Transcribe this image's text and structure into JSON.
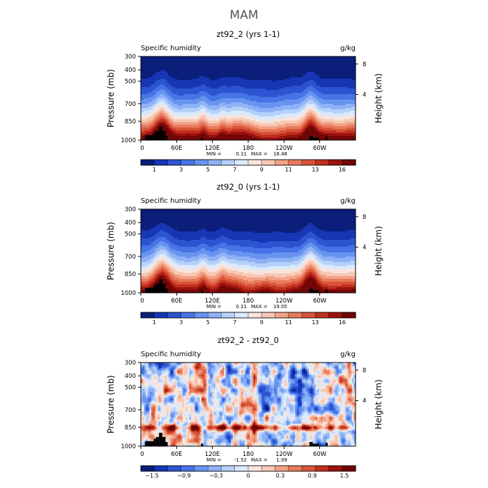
{
  "figure_title": "MAM",
  "chart_data": [
    {
      "type": "heatmap",
      "title": "zt92_2 (yrs 1-1)",
      "variable": "Specific humidity",
      "units": "g/kg",
      "ylabel": "Pressure (mb)",
      "ylabel_right": "Height (km)",
      "y_ticks": [
        "300",
        "400",
        "500",
        "700",
        "850",
        "1000"
      ],
      "y_ticks_right": [
        "8",
        "4"
      ],
      "x_ticks": [
        "0",
        "60E",
        "120E",
        "180",
        "120W",
        "60W"
      ],
      "min_label": "MIN =",
      "min_value": "0.11",
      "max_label": "MAX =",
      "max_value": "18.48",
      "colorbar_labels": [
        "1",
        "3",
        "5",
        "7",
        "9",
        "11",
        "13",
        "16"
      ],
      "colormap": "blue-white-red",
      "field": "humidity"
    },
    {
      "type": "heatmap",
      "title": "zt92_0 (yrs 1-1)",
      "variable": "Specific humidity",
      "units": "g/kg",
      "ylabel": "Pressure (mb)",
      "ylabel_right": "Height (km)",
      "y_ticks": [
        "300",
        "400",
        "500",
        "700",
        "850",
        "1000"
      ],
      "y_ticks_right": [
        "8",
        "4"
      ],
      "x_ticks": [
        "0",
        "60E",
        "120E",
        "180",
        "120W",
        "60W"
      ],
      "min_label": "MIN =",
      "min_value": "0.11",
      "max_label": "MAX =",
      "max_value": "19.05",
      "colorbar_labels": [
        "1",
        "3",
        "5",
        "7",
        "9",
        "11",
        "13",
        "16"
      ],
      "colormap": "blue-white-red",
      "field": "humidity"
    },
    {
      "type": "heatmap",
      "title": "zt92_2 - zt92_0",
      "variable": "Specific humidity",
      "units": "g/kg",
      "ylabel": "Pressure (mb)",
      "ylabel_right": "Height (km)",
      "y_ticks": [
        "300",
        "400",
        "500",
        "700",
        "850",
        "1000"
      ],
      "y_ticks_right": [
        "8",
        "4"
      ],
      "x_ticks": [
        "0",
        "60E",
        "120E",
        "180",
        "120W",
        "60W"
      ],
      "min_label": "MIN =",
      "min_value": "-1.52",
      "max_label": "MAX =",
      "max_value": "1.09",
      "colorbar_labels": [
        "−1.5",
        "−0.9",
        "−0.3",
        "0",
        "0.3",
        "0.9",
        "1.5"
      ],
      "colormap": "blue-white-red",
      "field": "difference"
    }
  ],
  "palette": [
    "#0a1e7a",
    "#1636b4",
    "#2c54d2",
    "#4674e6",
    "#6894f0",
    "#8eb2f6",
    "#b6d0fa",
    "#daeafc",
    "#f8e4dc",
    "#f8c8b4",
    "#f2a286",
    "#e87a5c",
    "#d8543a",
    "#c0301e",
    "#9c1210",
    "#700606"
  ]
}
